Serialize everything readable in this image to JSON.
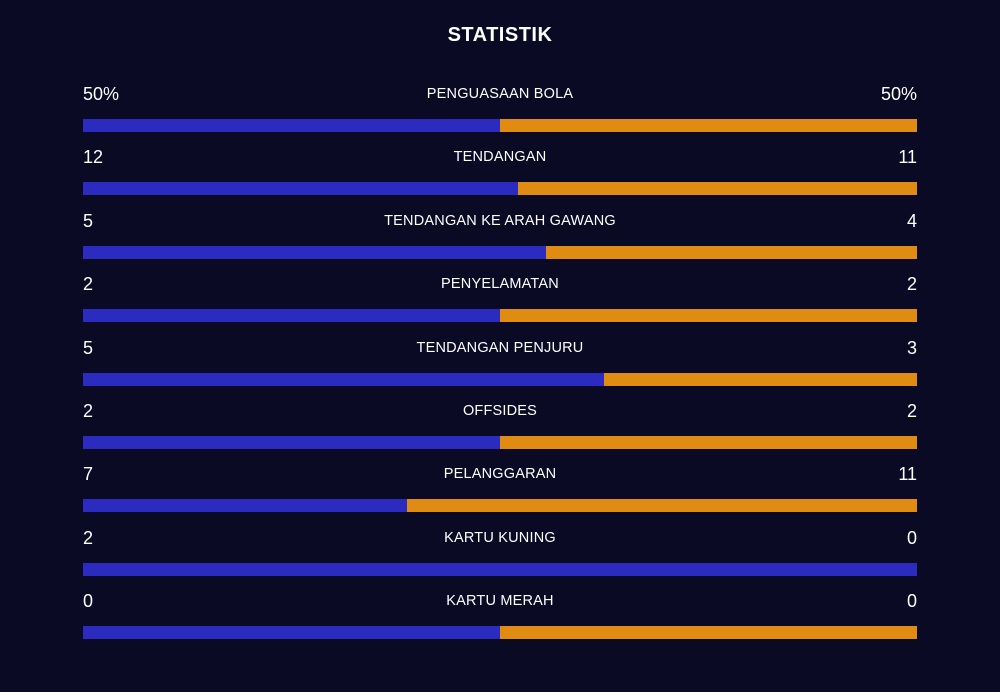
{
  "title": "STATISTIK",
  "colors": {
    "background": "#0a0a24",
    "home": "#2b2bc0",
    "away": "#e08b12"
  },
  "stats": [
    {
      "label": "PENGUASAAN BOLA",
      "left": "50%",
      "right": "50%",
      "home_share": 0.5
    },
    {
      "label": "TENDANGAN",
      "left": "12",
      "right": "11",
      "home_share": 0.5217
    },
    {
      "label": "TENDANGAN KE ARAH GAWANG",
      "left": "5",
      "right": "4",
      "home_share": 0.5556
    },
    {
      "label": "PENYELAMATAN",
      "left": "2",
      "right": "2",
      "home_share": 0.5
    },
    {
      "label": "TENDANGAN PENJURU",
      "left": "5",
      "right": "3",
      "home_share": 0.625
    },
    {
      "label": "OFFSIDES",
      "left": "2",
      "right": "2",
      "home_share": 0.5
    },
    {
      "label": "PELANGGARAN",
      "left": "7",
      "right": "11",
      "home_share": 0.3889
    },
    {
      "label": "KARTU KUNING",
      "left": "2",
      "right": "0",
      "home_share": 1.0
    },
    {
      "label": "KARTU MERAH",
      "left": "0",
      "right": "0",
      "home_share": 0.5
    }
  ]
}
